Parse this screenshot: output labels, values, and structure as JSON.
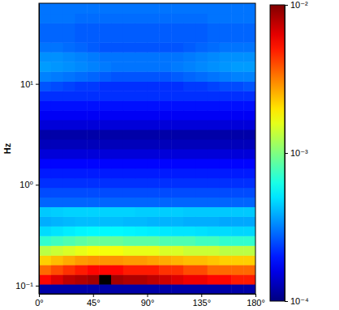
{
  "chart_data": {
    "type": "heatmap",
    "ylabel": "Hz",
    "log": "y",
    "color": "jet",
    "xlim": [
      0,
      180
    ],
    "xticks": [
      {
        "value": 0,
        "label": "0°"
      },
      {
        "value": 45,
        "label": "45°"
      },
      {
        "value": 90,
        "label": "90°"
      },
      {
        "value": 135,
        "label": "135°"
      },
      {
        "value": 180,
        "label": "180°"
      }
    ],
    "ylim": [
      0.083,
      63
    ],
    "yticks": [
      {
        "value": 0.1,
        "label": "10⁻¹"
      },
      {
        "value": 1,
        "label": "10⁰"
      },
      {
        "value": 10,
        "label": "10¹"
      }
    ],
    "x": [
      0,
      10,
      20,
      30,
      40,
      50,
      60,
      70,
      80,
      90,
      100,
      110,
      120,
      130,
      140,
      150,
      160,
      170,
      180
    ],
    "y": [
      0.083,
      0.1035,
      0.129,
      0.161,
      0.2,
      0.25,
      0.312,
      0.389,
      0.485,
      0.605,
      0.754,
      0.94,
      1.17,
      1.46,
      1.82,
      2.27,
      2.83,
      3.53,
      4.41,
      5.49,
      6.85,
      8.54,
      10.6,
      13.3,
      16.6,
      20.7,
      25.8,
      32.1,
      40.1,
      50,
      63
    ],
    "values": [
      [
        0.00012,
        0.00012,
        0.00012,
        0.00012,
        0.00012,
        0.00012,
        0.00012,
        0.00012,
        0.00012,
        0.00012,
        0.00012,
        0.00012,
        0.00012,
        0.00012,
        0.00012,
        0.00012,
        0.00012,
        0.00012
      ],
      [
        0.0055,
        0.0065,
        0.0075,
        0.008,
        0.0085,
        0.015,
        0.0085,
        0.008,
        0.008,
        0.0075,
        0.007,
        0.0065,
        0.006,
        0.006,
        0.0055,
        0.0055,
        0.005,
        0.005
      ],
      [
        0.0035,
        0.004,
        0.0045,
        0.005,
        0.0055,
        0.0055,
        0.0055,
        0.005,
        0.005,
        0.005,
        0.0045,
        0.0045,
        0.004,
        0.004,
        0.0035,
        0.0035,
        0.0035,
        0.0035
      ],
      [
        0.0022,
        0.0024,
        0.0026,
        0.0028,
        0.0029,
        0.0029,
        0.0029,
        0.0028,
        0.0028,
        0.0027,
        0.0026,
        0.0025,
        0.0024,
        0.0024,
        0.0023,
        0.0022,
        0.0022,
        0.0022
      ],
      [
        0.0013,
        0.0014,
        0.0015,
        0.0016,
        0.0017,
        0.0017,
        0.0017,
        0.0016,
        0.0016,
        0.0016,
        0.0015,
        0.0015,
        0.0014,
        0.0014,
        0.0014,
        0.0013,
        0.0013,
        0.0013
      ],
      [
        0.0007,
        0.00075,
        0.0008,
        0.00085,
        0.0009,
        0.0009,
        0.0009,
        0.00085,
        0.00085,
        0.00085,
        0.0008,
        0.0008,
        0.0008,
        0.00075,
        0.00075,
        0.0007,
        0.0007,
        0.0007
      ],
      [
        0.00048,
        0.0005,
        0.00052,
        0.00054,
        0.00055,
        0.00055,
        0.00055,
        0.00054,
        0.00053,
        0.00052,
        0.00051,
        0.0005,
        0.0005,
        0.00049,
        0.00048,
        0.00048,
        0.00047,
        0.00047
      ],
      [
        0.00039,
        0.0004,
        0.00041,
        0.00042,
        0.00042,
        0.00042,
        0.00042,
        0.00041,
        0.00041,
        0.0004,
        0.0004,
        0.0004,
        0.00039,
        0.00039,
        0.00039,
        0.00038,
        0.00038,
        0.00038
      ],
      [
        0.00044,
        0.00045,
        0.00046,
        0.00046,
        0.00046,
        0.00046,
        0.00046,
        0.00046,
        0.00045,
        0.00045,
        0.00045,
        0.00045,
        0.00044,
        0.00044,
        0.00044,
        0.00044,
        0.00044,
        0.00044
      ],
      [
        0.00028,
        0.00028,
        0.00028,
        0.00028,
        0.00028,
        0.00028,
        0.00028,
        0.00028,
        0.00028,
        0.00028,
        0.00028,
        0.00028,
        0.00028,
        0.00028,
        0.00028,
        0.00028,
        0.00028,
        0.00028
      ],
      [
        0.00025,
        0.00025,
        0.00025,
        0.00025,
        0.00025,
        0.00025,
        0.00025,
        0.00025,
        0.00025,
        0.00025,
        0.00025,
        0.00025,
        0.00025,
        0.00025,
        0.00025,
        0.00025,
        0.00025,
        0.00025
      ],
      [
        0.00022,
        0.00022,
        0.00022,
        0.00022,
        0.00022,
        0.00022,
        0.00022,
        0.00022,
        0.00022,
        0.00022,
        0.00022,
        0.00022,
        0.00022,
        0.00022,
        0.00022,
        0.00022,
        0.00022,
        0.00022
      ],
      [
        0.0002,
        0.0002,
        0.0002,
        0.0002,
        0.0002,
        0.0002,
        0.0002,
        0.0002,
        0.0002,
        0.0002,
        0.0002,
        0.0002,
        0.0002,
        0.0002,
        0.0002,
        0.0002,
        0.0002,
        0.0002
      ],
      [
        0.00018,
        0.00018,
        0.00018,
        0.00018,
        0.00018,
        0.00018,
        0.00018,
        0.00018,
        0.00018,
        0.00018,
        0.00018,
        0.00018,
        0.00018,
        0.00018,
        0.00018,
        0.00018,
        0.00018,
        0.00018
      ],
      [
        0.00015,
        0.00015,
        0.00015,
        0.00015,
        0.00015,
        0.00015,
        0.00015,
        0.00015,
        0.00015,
        0.00015,
        0.00015,
        0.00015,
        0.00015,
        0.00015,
        0.00015,
        0.00015,
        0.00015,
        0.00015
      ],
      [
        0.00013,
        0.00013,
        0.00013,
        0.00013,
        0.00013,
        0.00013,
        0.00013,
        0.00013,
        0.00013,
        0.00013,
        0.00013,
        0.00013,
        0.00013,
        0.00013,
        0.00013,
        0.00013,
        0.00013,
        0.00013
      ],
      [
        0.00012,
        0.00012,
        0.00012,
        0.00012,
        0.00012,
        0.00012,
        0.00012,
        0.00012,
        0.00012,
        0.00012,
        0.00012,
        0.00012,
        0.00012,
        0.00012,
        0.00012,
        0.00012,
        0.00012,
        0.00012
      ],
      [
        0.00015,
        0.00015,
        0.00015,
        0.00015,
        0.00015,
        0.00015,
        0.00015,
        0.00015,
        0.00015,
        0.00015,
        0.00015,
        0.00015,
        0.00015,
        0.00015,
        0.00015,
        0.00015,
        0.00015,
        0.00015
      ],
      [
        0.00017,
        0.00017,
        0.00017,
        0.00017,
        0.00017,
        0.00017,
        0.00017,
        0.00017,
        0.00017,
        0.00017,
        0.00017,
        0.00017,
        0.00017,
        0.00017,
        0.00017,
        0.00017,
        0.00017,
        0.00017
      ],
      [
        0.00019,
        0.00019,
        0.00019,
        0.00019,
        0.00019,
        0.00019,
        0.00019,
        0.00019,
        0.00019,
        0.00019,
        0.00019,
        0.00019,
        0.00019,
        0.00019,
        0.00019,
        0.00019,
        0.00019,
        0.00019
      ],
      [
        0.00022,
        0.00022,
        0.00022,
        0.00022,
        0.00022,
        0.00022,
        0.00022,
        0.00022,
        0.00022,
        0.00022,
        0.00022,
        0.00022,
        0.00022,
        0.00022,
        0.00022,
        0.00022,
        0.00022,
        0.00022
      ],
      [
        0.00026,
        0.00025,
        0.00024,
        0.00023,
        0.00023,
        0.00022,
        0.00022,
        0.00022,
        0.00022,
        0.00022,
        0.00022,
        0.00022,
        0.00023,
        0.00023,
        0.00024,
        0.00025,
        0.00025,
        0.00026
      ],
      [
        0.00032,
        0.00031,
        0.0003,
        0.00029,
        0.00028,
        0.00027,
        0.00026,
        0.00026,
        0.00026,
        0.00026,
        0.00026,
        0.00027,
        0.00028,
        0.00029,
        0.0003,
        0.00031,
        0.00032,
        0.00032
      ],
      [
        0.00036,
        0.00035,
        0.00034,
        0.00033,
        0.00032,
        0.00031,
        0.0003,
        0.0003,
        0.0003,
        0.0003,
        0.0003,
        0.00031,
        0.00032,
        0.00033,
        0.00034,
        0.00035,
        0.00036,
        0.00036
      ],
      [
        0.00034,
        0.00034,
        0.00033,
        0.00032,
        0.00031,
        0.0003,
        0.0003,
        0.0003,
        0.0003,
        0.0003,
        0.0003,
        0.0003,
        0.00031,
        0.00032,
        0.00033,
        0.00034,
        0.00034,
        0.00034
      ],
      [
        0.0003,
        0.0003,
        0.00029,
        0.00028,
        0.00027,
        0.00026,
        0.00026,
        0.00026,
        0.00026,
        0.00026,
        0.00026,
        0.00026,
        0.00027,
        0.00028,
        0.00029,
        0.0003,
        0.0003,
        0.0003
      ],
      [
        0.00028,
        0.00028,
        0.00028,
        0.00027,
        0.00027,
        0.00027,
        0.00027,
        0.00027,
        0.00027,
        0.00027,
        0.00027,
        0.00027,
        0.00027,
        0.00027,
        0.00028,
        0.00028,
        0.00028,
        0.00028
      ],
      [
        0.00028,
        0.00028,
        0.00028,
        0.00027,
        0.00027,
        0.00027,
        0.00027,
        0.00027,
        0.00027,
        0.00027,
        0.00027,
        0.00027,
        0.00027,
        0.00027,
        0.00028,
        0.00028,
        0.00028,
        0.00028
      ],
      [
        0.0003,
        0.0003,
        0.0003,
        0.00029,
        0.00029,
        0.00029,
        0.00029,
        0.00029,
        0.00029,
        0.00029,
        0.00029,
        0.00029,
        0.00029,
        0.00029,
        0.0003,
        0.0003,
        0.0003,
        0.0003
      ],
      [
        0.0003,
        0.0003,
        0.0003,
        0.0003,
        0.0003,
        0.0003,
        0.0003,
        0.0003,
        0.0003,
        0.0003,
        0.0003,
        0.0003,
        0.0003,
        0.0003,
        0.0003,
        0.0003,
        0.0003,
        0.0003
      ]
    ],
    "colorbar": {
      "range": [
        0.0001,
        0.01
      ],
      "ticks": [
        {
          "value": 0.0001,
          "label": "10⁻⁴"
        },
        {
          "value": 0.001,
          "label": "10⁻³"
        },
        {
          "value": 0.01,
          "label": "10⁻²"
        }
      ]
    }
  }
}
